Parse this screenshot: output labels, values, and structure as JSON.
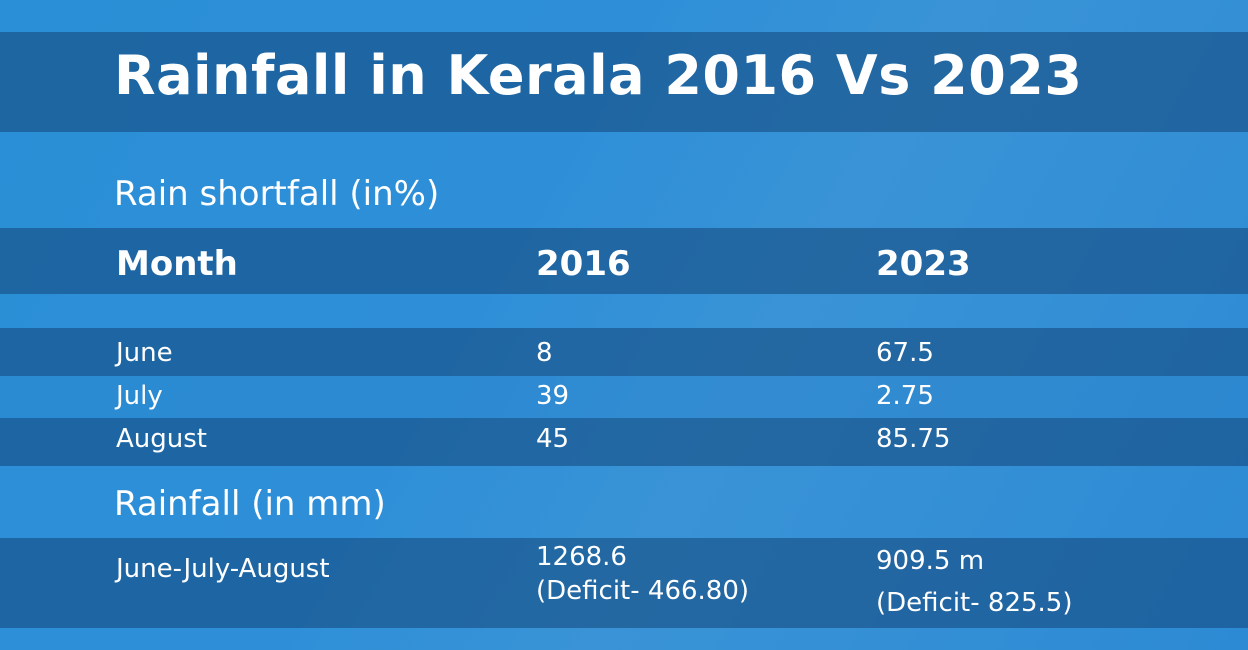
{
  "chart_data": {
    "type": "table",
    "title": "Rainfall in Kerala 2016 Vs 2023",
    "shortfall": {
      "heading": "Rain shortfall (in%)",
      "columns": [
        "Month",
        "2016",
        "2023"
      ],
      "rows": [
        [
          "June",
          "8",
          "67.5"
        ],
        [
          "July",
          "39",
          "2.75"
        ],
        [
          "August",
          "45",
          "85.75"
        ]
      ]
    },
    "rainfall": {
      "heading": "Rainfall (in mm)",
      "rows": [
        [
          "June-July-August",
          "1268.6\n(Deficit- 466.80)",
          "909.5 m\n(Deficit- 825.5)"
        ]
      ]
    }
  }
}
